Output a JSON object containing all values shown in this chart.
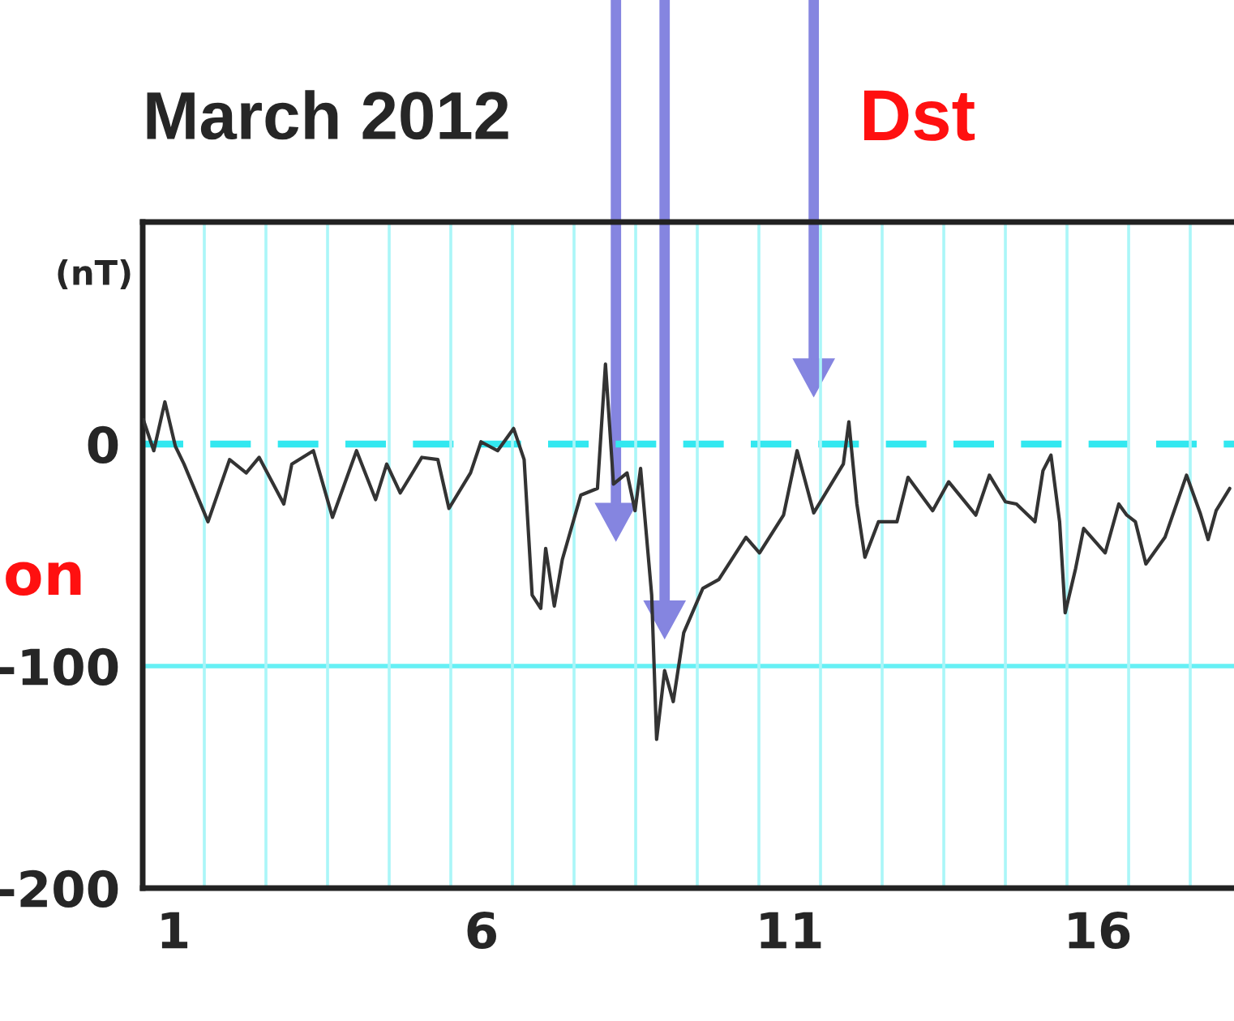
{
  "chart_data": {
    "type": "line",
    "title": "March 2012",
    "subtitle": "Dst",
    "ylabel": "(nT)",
    "annotations": [
      "on"
    ],
    "series": [
      {
        "color": "#333333",
        "line_style": "solid",
        "x": [
          1.01,
          1.18,
          1.36,
          1.53,
          1.67,
          2.06,
          2.41,
          2.68,
          2.89,
          3.29,
          3.42,
          3.77,
          4.08,
          4.47,
          4.78,
          4.96,
          5.18,
          5.53,
          5.79,
          5.97,
          6.32,
          6.49,
          6.76,
          7.02,
          7.19,
          7.32,
          7.46,
          7.54,
          7.68,
          7.81,
          8.11,
          8.38,
          8.51,
          8.64,
          8.86,
          8.99,
          9.08,
          9.26,
          9.34,
          9.47,
          9.61,
          9.78,
          10.09,
          10.35,
          10.79,
          11.01,
          11.4,
          11.62,
          11.89,
          12.37,
          12.46,
          12.59,
          12.72,
          12.94,
          13.24,
          13.42,
          13.82,
          14.08,
          14.52,
          14.74,
          15.0,
          15.18,
          15.48,
          15.61,
          15.74,
          15.88,
          15.97,
          16.14,
          16.27,
          16.62,
          16.84,
          16.97,
          17.11,
          17.28,
          17.59,
          17.94,
          18.16,
          18.29,
          18.42,
          18.64
        ],
        "values": [
          11,
          -3,
          19,
          -1,
          -9,
          -35,
          -7,
          -13,
          -6,
          -27,
          -9,
          -3,
          -33,
          -3,
          -25,
          -9,
          -22,
          -6,
          -7,
          -29,
          -13,
          1,
          -3,
          7,
          -7,
          -68,
          -74,
          -47,
          -73,
          -52,
          -23,
          -20,
          36,
          -18,
          -13,
          -30,
          -11,
          -68,
          -133,
          -102,
          -116,
          -85,
          -65,
          -61,
          -42,
          -49,
          -32,
          -3,
          -31,
          -9,
          10,
          -27,
          -51,
          -35,
          -35,
          -15,
          -30,
          -17,
          -32,
          -14,
          -26,
          -27,
          -35,
          -12,
          -5,
          -35,
          -76,
          -56,
          -38,
          -49,
          -27,
          -32,
          -35,
          -54,
          -42,
          -14,
          -31,
          -43,
          -30,
          -20
        ]
      }
    ],
    "xlim": [
      1,
      18.71
    ],
    "xticks": [
      {
        "value": 1.5,
        "label": "1"
      },
      {
        "value": 6.5,
        "label": "6"
      },
      {
        "value": 11.5,
        "label": "11"
      },
      {
        "value": 16.5,
        "label": "16"
      }
    ],
    "ylim": [
      -200,
      100
    ],
    "yticks": [
      0,
      -100,
      -200
    ],
    "grid": false,
    "legend": false,
    "marker": "none",
    "ref_lines": [
      {
        "axis": "y",
        "value": 0,
        "color": "#33e8f0",
        "line_style": "dashed"
      },
      {
        "axis": "y",
        "value": -100,
        "color": "#66f0f5",
        "line_style": "solid"
      },
      {
        "axis": "x",
        "value": 2,
        "color": "#aaf6f8"
      },
      {
        "axis": "x",
        "value": 3,
        "color": "#aaf6f8"
      },
      {
        "axis": "x",
        "value": 4,
        "color": "#aaf6f8"
      },
      {
        "axis": "x",
        "value": 5,
        "color": "#aaf6f8"
      },
      {
        "axis": "x",
        "value": 6,
        "color": "#aaf6f8"
      },
      {
        "axis": "x",
        "value": 7,
        "color": "#aaf6f8"
      },
      {
        "axis": "x",
        "value": 8,
        "color": "#aaf6f8"
      },
      {
        "axis": "x",
        "value": 9,
        "color": "#aaf6f8"
      },
      {
        "axis": "x",
        "value": 10,
        "color": "#aaf6f8"
      },
      {
        "axis": "x",
        "value": 11,
        "color": "#aaf6f8"
      },
      {
        "axis": "x",
        "value": 12,
        "color": "#aaf6f8"
      },
      {
        "axis": "x",
        "value": 13,
        "color": "#aaf6f8"
      },
      {
        "axis": "x",
        "value": 14,
        "color": "#aaf6f8"
      },
      {
        "axis": "x",
        "value": 15,
        "color": "#aaf6f8"
      },
      {
        "axis": "x",
        "value": 16,
        "color": "#aaf6f8"
      },
      {
        "axis": "x",
        "value": 17,
        "color": "#aaf6f8"
      },
      {
        "axis": "x",
        "value": 18,
        "color": "#aaf6f8"
      }
    ]
  }
}
